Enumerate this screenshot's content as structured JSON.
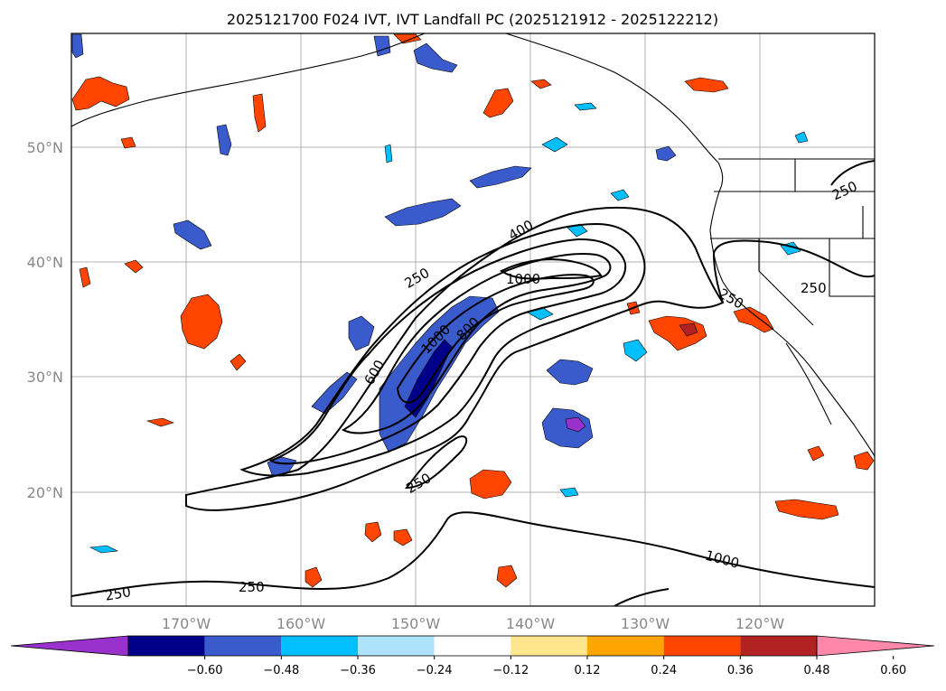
{
  "title": "2025121700 F024 IVT, IVT Landfall PC (2025121912 - 2025122212)",
  "map": {
    "lat_labels": [
      "50°N",
      "40°N",
      "30°N",
      "20°N"
    ],
    "lon_labels": [
      "170°W",
      "160°W",
      "150°W",
      "140°W",
      "130°W",
      "120°W"
    ],
    "gridlines": true
  },
  "contour_labels": [
    "250",
    "400",
    "600",
    "800",
    "1000",
    "1000",
    "250",
    "250",
    "250",
    "250",
    "250",
    "250",
    "1000"
  ],
  "colorbar": {
    "ticks": [
      "−0.60",
      "−0.48",
      "−0.36",
      "−0.24",
      "−0.12",
      "0.12",
      "0.24",
      "0.36",
      "0.48",
      "0.60"
    ],
    "colors": [
      "#9932cc",
      "#00008b",
      "#3a5bcc",
      "#00bfff",
      "#ade3fb",
      "#ffffff",
      "#ffe68c",
      "#ffa500",
      "#ff4500",
      "#b22222",
      "#ff88aa"
    ],
    "extend": "both"
  },
  "chart_data": {
    "type": "contour",
    "title": "2025121700 F024 IVT, IVT Landfall PC (2025121912 - 2025122212)",
    "contour_levels": [
      250,
      400,
      600,
      800,
      1000
    ],
    "fill_levels": [
      -0.6,
      -0.48,
      -0.36,
      -0.24,
      -0.12,
      0.12,
      0.24,
      0.36,
      0.48,
      0.6
    ]
  }
}
